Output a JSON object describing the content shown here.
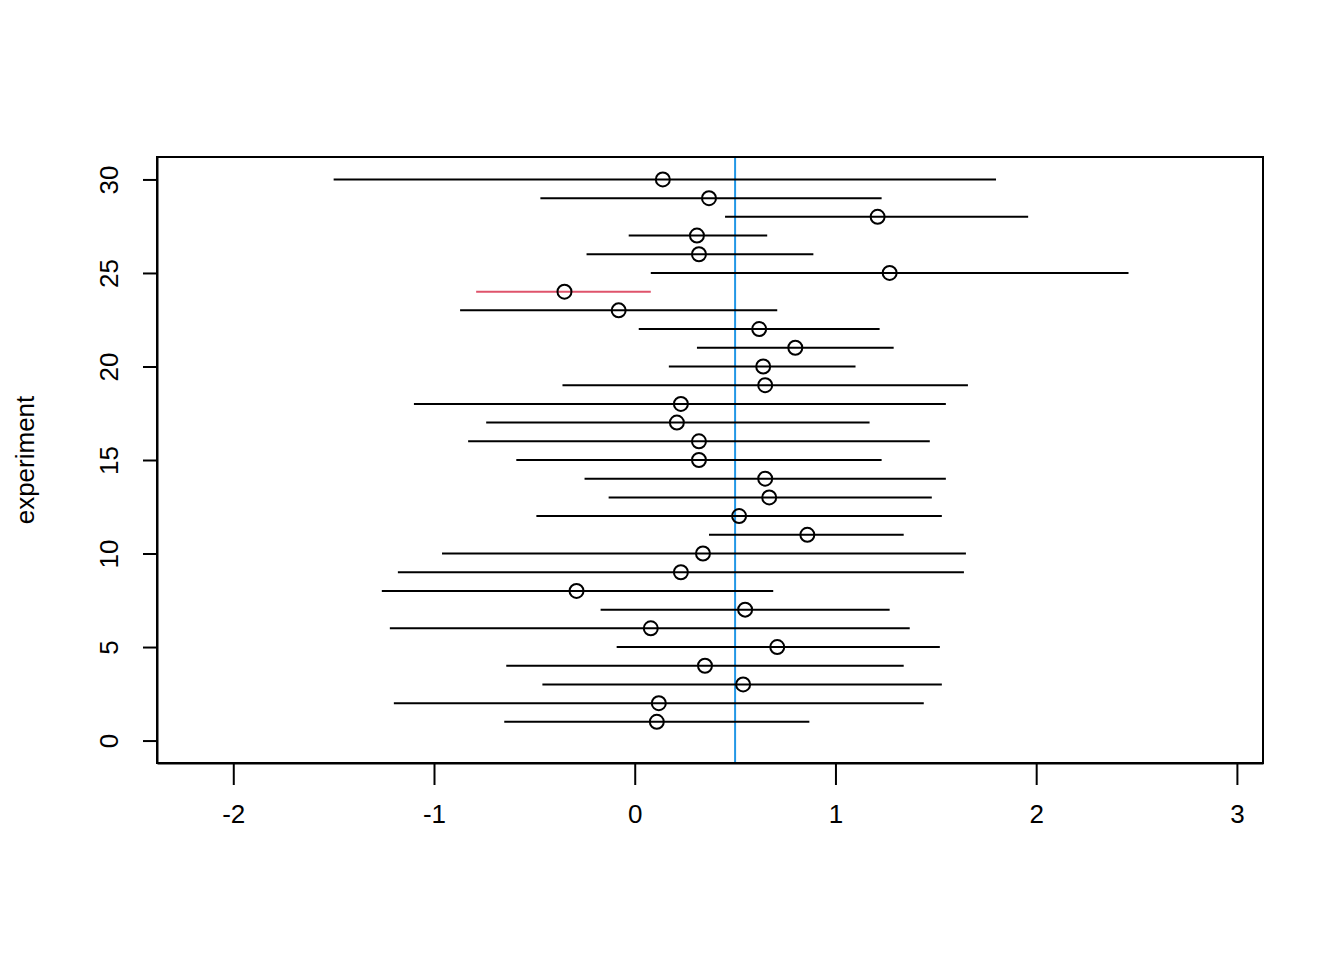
{
  "chart_data": {
    "type": "interval",
    "y_label": "experiment",
    "x": [
      0.11,
      0.12,
      0.54,
      0.35,
      0.71,
      0.08,
      0.55,
      -0.29,
      0.23,
      0.34,
      0.86,
      0.52,
      0.67,
      0.65,
      0.32,
      0.32,
      0.21,
      0.23,
      0.65,
      0.64,
      0.8,
      0.62,
      -0.08,
      -0.35,
      1.27,
      0.32,
      0.31,
      1.21,
      0.37,
      0.14
    ],
    "lower": [
      -0.65,
      -1.2,
      -0.46,
      -0.64,
      -0.09,
      -1.22,
      -0.17,
      -1.26,
      -1.18,
      -0.96,
      0.37,
      -0.49,
      -0.13,
      -0.25,
      -0.59,
      -0.83,
      -0.74,
      -1.1,
      -0.36,
      0.17,
      0.31,
      0.02,
      -0.87,
      -0.79,
      0.08,
      -0.24,
      -0.03,
      0.45,
      -0.47,
      -1.5
    ],
    "upper": [
      0.87,
      1.44,
      1.53,
      1.34,
      1.52,
      1.37,
      1.27,
      0.69,
      1.64,
      1.65,
      1.34,
      1.53,
      1.48,
      1.55,
      1.23,
      1.47,
      1.17,
      1.55,
      1.66,
      1.1,
      1.29,
      1.22,
      0.71,
      0.08,
      2.46,
      0.89,
      0.66,
      1.96,
      1.23,
      1.8
    ],
    "y": [
      1,
      2,
      3,
      4,
      5,
      6,
      7,
      8,
      9,
      10,
      11,
      12,
      13,
      14,
      15,
      16,
      17,
      18,
      19,
      20,
      21,
      22,
      23,
      24,
      25,
      26,
      27,
      28,
      29,
      30
    ],
    "colors": [
      "#000000",
      "#000000",
      "#000000",
      "#000000",
      "#000000",
      "#000000",
      "#000000",
      "#000000",
      "#000000",
      "#000000",
      "#000000",
      "#000000",
      "#000000",
      "#000000",
      "#000000",
      "#000000",
      "#000000",
      "#000000",
      "#000000",
      "#000000",
      "#000000",
      "#000000",
      "#000000",
      "#DF536B",
      "#000000",
      "#000000",
      "#000000",
      "#000000",
      "#000000",
      "#000000"
    ],
    "reference_x": 0.5,
    "marker": "circle",
    "xlim": [
      -2.38,
      3.13
    ],
    "ylim": [
      -1.2,
      31.2
    ],
    "xticks": [
      -2,
      -1,
      0,
      1,
      2,
      3
    ],
    "yticks": [
      0,
      5,
      10,
      15,
      20,
      25,
      30
    ]
  }
}
